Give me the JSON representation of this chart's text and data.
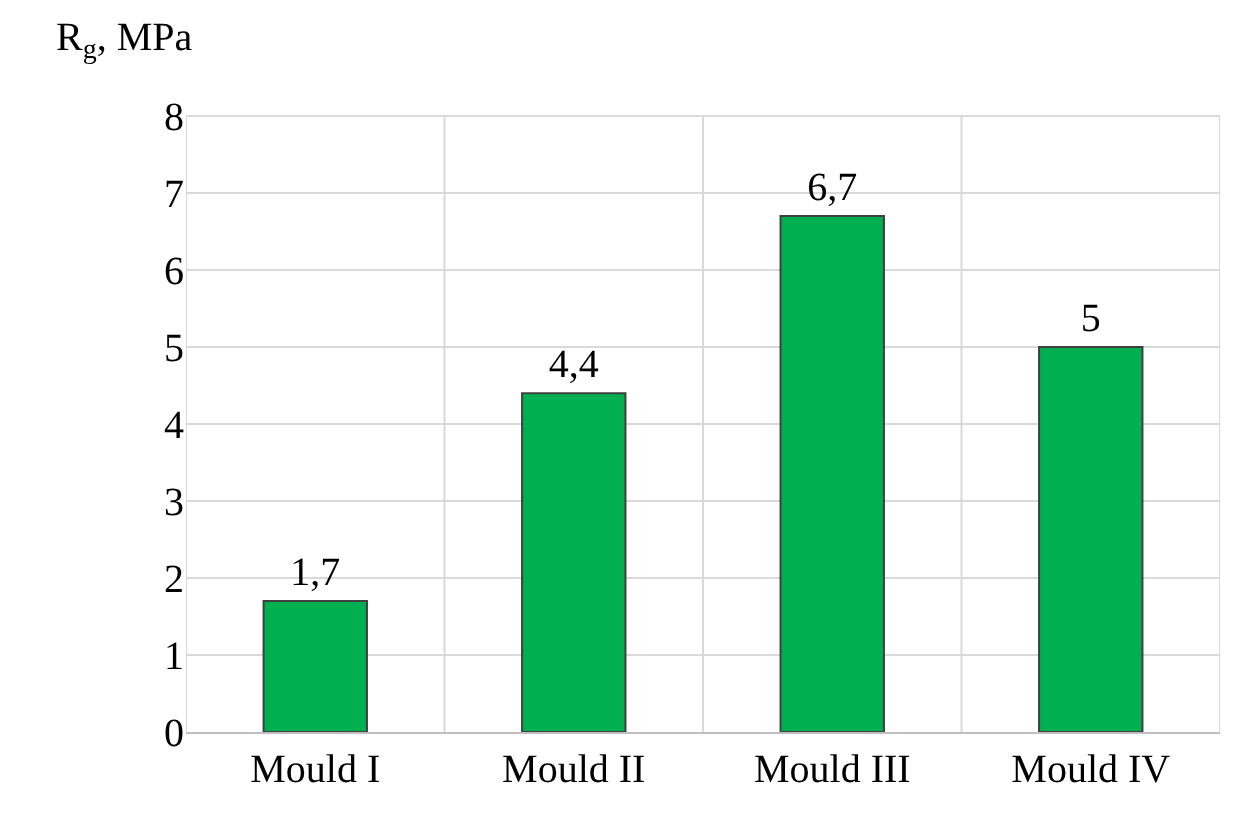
{
  "chart_data": {
    "type": "bar",
    "ylabel": "R$_{g}$, MPa",
    "categories": [
      "Mould I",
      "Mould II",
      "Mould III",
      "Mould IV"
    ],
    "values": [
      1.7,
      4.4,
      6.7,
      5
    ],
    "value_labels": [
      "1,7",
      "4,4",
      "6,7",
      "5"
    ],
    "color": "#00b050",
    "ylim": [
      0,
      8
    ],
    "yticks": [
      0,
      1,
      2,
      3,
      4,
      5,
      6,
      7,
      8
    ],
    "grid": true
  }
}
